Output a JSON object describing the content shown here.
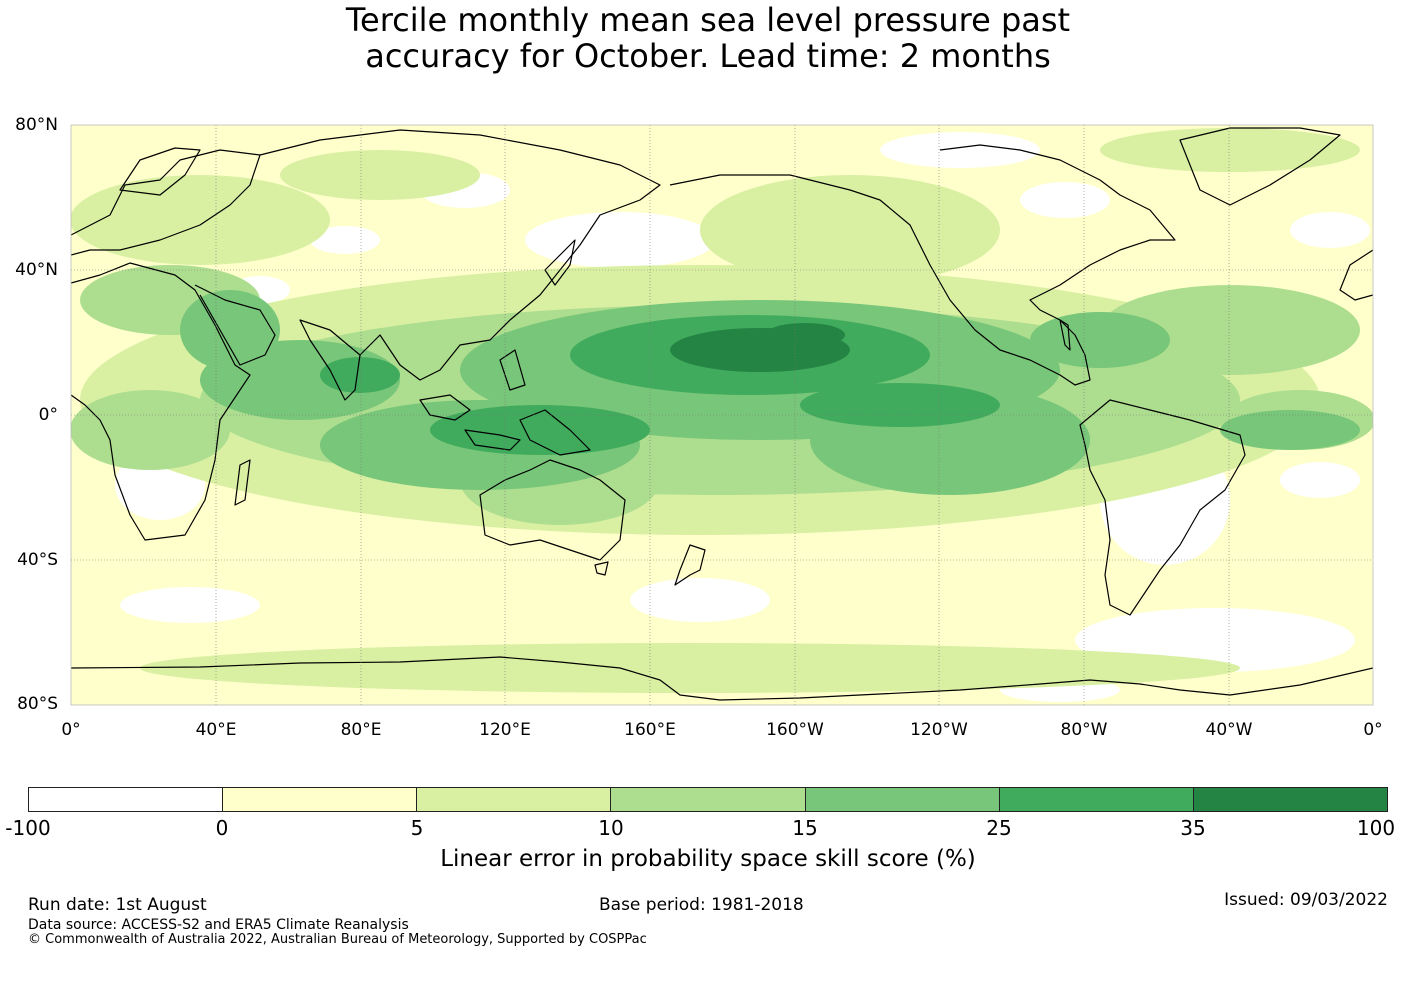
{
  "title": {
    "line1": "Tercile monthly mean sea level pressure past",
    "line2": "accuracy for October. Lead time: 2 months"
  },
  "map": {
    "projection": "equirectangular",
    "extent": {
      "lon": [
        0,
        360
      ],
      "lat": [
        -80,
        80
      ]
    },
    "lat_labels": [
      "80°N",
      "40°N",
      "0°",
      "40°S",
      "80°S"
    ],
    "lon_labels": [
      "0°",
      "40°E",
      "80°E",
      "120°E",
      "160°E",
      "160°W",
      "120°W",
      "80°W",
      "40°W",
      "0°"
    ],
    "grid": true,
    "background_color": "#ffffcc",
    "coastline_color": "#000000"
  },
  "legend": {
    "title": "Linear error in probability space skill score (%)",
    "ticks": [
      "-100",
      "0",
      "5",
      "10",
      "15",
      "25",
      "35",
      "100"
    ],
    "colors": [
      "#ffffff",
      "#ffffcc",
      "#d9f0a3",
      "#addd8e",
      "#78c679",
      "#41ab5d",
      "#238443"
    ]
  },
  "footer": {
    "run_date": "Run date: 1st August",
    "base_period": "Base period: 1981-2018",
    "issued": "Issued: 09/03/2022",
    "data_source": "Data source: ACCESS-S2 and ERA5 Climate Reanalysis",
    "copyright": "© Commonwealth of Australia 2022, Australian Bureau of Meteorology, Supported by COSPPac"
  }
}
